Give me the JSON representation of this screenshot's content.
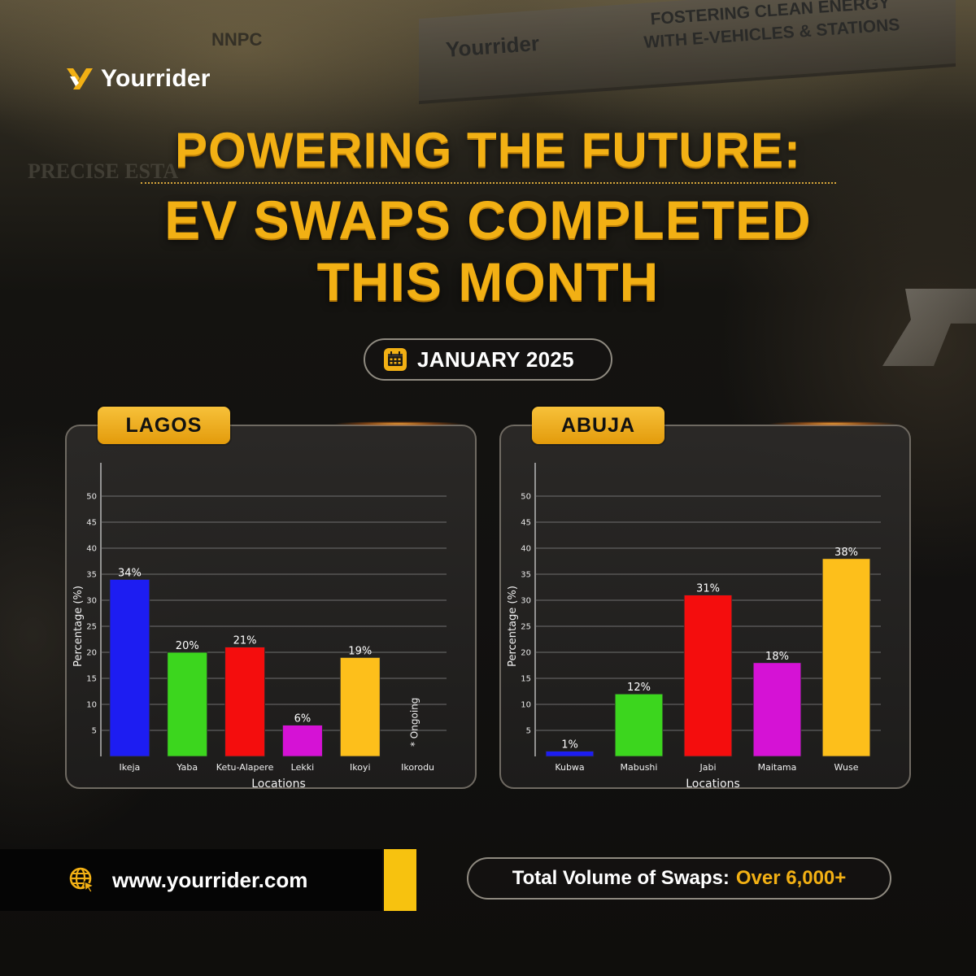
{
  "background": {
    "nnpc_text": "NNPC",
    "precise_text": "PRECISE ESTA",
    "sign_brand": "Yourrider",
    "sign_slogan_line1": "FOSTERING CLEAN ENERGY",
    "sign_slogan_line2": "WITH E-VEHICLES & STATIONS"
  },
  "brand": {
    "name": "Yourrider",
    "accent_color": "#f2b014",
    "logo_icon": "yourrider-logo-icon"
  },
  "title": {
    "line1": "POWERING THE FUTURE:",
    "line2": "EV SWAPS COMPLETED",
    "line3": "THIS MONTH"
  },
  "period": {
    "label": "JANUARY 2025",
    "icon": "calendar-icon"
  },
  "footer": {
    "website": "www.yourrider.com",
    "website_icon": "globe-icon",
    "total_label": "Total Volume of Swaps:",
    "total_value": "Over 6,000+"
  },
  "chart_data": [
    {
      "type": "bar",
      "panel_label": "LAGOS",
      "xlabel": "Locations",
      "ylabel": "Percentage (%)",
      "ylim": [
        0,
        50
      ],
      "yticks": [
        5,
        10,
        15,
        20,
        25,
        30,
        35,
        40,
        45,
        50
      ],
      "grid": true,
      "categories": [
        "Ikeja",
        "Yaba",
        "Ketu-Alapere",
        "Lekki",
        "Ikoyi",
        "Ikorodu"
      ],
      "values": [
        34,
        20,
        21,
        6,
        19,
        null
      ],
      "data_labels": [
        "34%",
        "20%",
        "21%",
        "6%",
        "19%",
        null
      ],
      "colors": [
        "#1d1df2",
        "#3cd61e",
        "#f40d0d",
        "#d512d5",
        "#fdbf1b",
        null
      ],
      "annotations": [
        {
          "category": "Ikorodu",
          "text": "* Ongoing"
        }
      ]
    },
    {
      "type": "bar",
      "panel_label": "ABUJA",
      "xlabel": "Locations",
      "ylabel": "Percentage (%)",
      "ylim": [
        0,
        50
      ],
      "yticks": [
        5,
        10,
        15,
        20,
        25,
        30,
        35,
        40,
        45,
        50
      ],
      "grid": true,
      "categories": [
        "Kubwa",
        "Mabushi",
        "Jabi",
        "Maitama",
        "Wuse"
      ],
      "values": [
        1,
        12,
        31,
        18,
        38
      ],
      "data_labels": [
        "1%",
        "12%",
        "31%",
        "18%",
        "38%"
      ],
      "colors": [
        "#1d1df2",
        "#3cd61e",
        "#f40d0d",
        "#d512d5",
        "#fdbf1b"
      ],
      "annotations": []
    }
  ]
}
